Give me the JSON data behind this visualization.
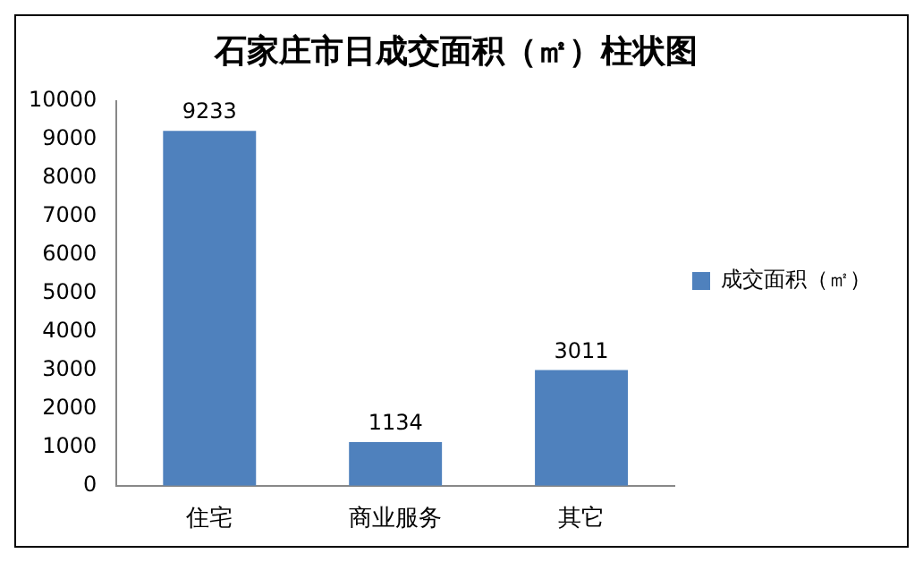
{
  "chart_data": {
    "type": "bar",
    "title": "石家庄市日成交面积（㎡）柱状图",
    "categories": [
      "住宅",
      "商业服务",
      "其它"
    ],
    "series": [
      {
        "name": "成交面积（㎡）",
        "color": "#4f81bd",
        "values": [
          9233,
          1134,
          3011
        ]
      }
    ],
    "ylim": [
      0,
      10000
    ],
    "yticks": [
      0,
      1000,
      2000,
      3000,
      4000,
      5000,
      6000,
      7000,
      8000,
      9000,
      10000
    ],
    "grid": false,
    "legend": "right",
    "data_labels": true
  }
}
